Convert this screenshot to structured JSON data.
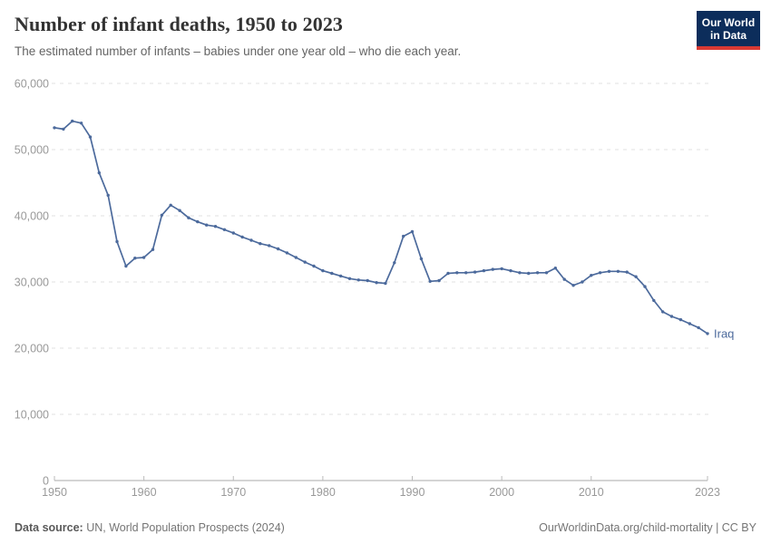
{
  "header": {
    "title": "Number of infant deaths, 1950 to 2023",
    "subtitle": "The estimated number of infants – babies under one year old – who die each year."
  },
  "logo": {
    "line1": "Our World",
    "line2": "in Data"
  },
  "footer": {
    "source_label": "Data source:",
    "source_text": " UN, World Population Prospects (2024)",
    "citation": "OurWorldinData.org/child-mortality | CC BY"
  },
  "colors": {
    "line": "#4c6a9c",
    "end_label": "#4c6a9c",
    "grid": "#e2e2e2",
    "axis_line": "#a8a8a8",
    "tick": "#bbbbbb",
    "tick_label": "#999999",
    "logo_bg": "#0c2d5b",
    "logo_red": "#d93a34"
  },
  "chart_data": {
    "type": "line",
    "title": "Number of infant deaths, 1950 to 2023",
    "xlabel": "",
    "ylabel": "",
    "xlim": [
      1950,
      2023
    ],
    "ylim": [
      0,
      60000
    ],
    "grid": "horizontal-dashed",
    "legend_position": "line-end-label",
    "end_label": "Iraq",
    "x_ticks": [
      1950,
      1960,
      1970,
      1980,
      1990,
      2000,
      2010,
      2023
    ],
    "x_tick_labels": [
      "1950",
      "1960",
      "1970",
      "1980",
      "1990",
      "2000",
      "2010",
      "2023"
    ],
    "y_ticks": [
      0,
      10000,
      20000,
      30000,
      40000,
      50000,
      60000
    ],
    "y_tick_labels": [
      "0",
      "10,000",
      "20,000",
      "30,000",
      "40,000",
      "50,000",
      "60,000"
    ],
    "x": [
      1950,
      1951,
      1952,
      1953,
      1954,
      1955,
      1956,
      1957,
      1958,
      1959,
      1960,
      1961,
      1962,
      1963,
      1964,
      1965,
      1966,
      1967,
      1968,
      1969,
      1970,
      1971,
      1972,
      1973,
      1974,
      1975,
      1976,
      1977,
      1978,
      1979,
      1980,
      1981,
      1982,
      1983,
      1984,
      1985,
      1986,
      1987,
      1988,
      1989,
      1990,
      1991,
      1992,
      1993,
      1994,
      1995,
      1996,
      1997,
      1998,
      1999,
      2000,
      2001,
      2002,
      2003,
      2004,
      2005,
      2006,
      2007,
      2008,
      2009,
      2010,
      2011,
      2012,
      2013,
      2014,
      2015,
      2016,
      2017,
      2018,
      2019,
      2020,
      2021,
      2022,
      2023
    ],
    "series": [
      {
        "name": "Iraq",
        "values": [
          53300,
          53100,
          54300,
          54000,
          51900,
          46500,
          43100,
          36100,
          32400,
          33600,
          33700,
          34900,
          40100,
          41600,
          40800,
          39700,
          39100,
          38600,
          38400,
          37900,
          37400,
          36800,
          36300,
          35800,
          35500,
          35000,
          34400,
          33700,
          33000,
          32400,
          31700,
          31300,
          30900,
          30500,
          30300,
          30200,
          29900,
          29800,
          32900,
          36900,
          37600,
          33500,
          30100,
          30200,
          31300,
          31400,
          31400,
          31500,
          31700,
          31900,
          32000,
          31700,
          31400,
          31300,
          31400,
          31400,
          32100,
          30400,
          29500,
          30000,
          31000,
          31400,
          31600,
          31600,
          31500,
          30800,
          29300,
          27200,
          25500,
          24800,
          24300,
          23700,
          23100,
          22200
        ]
      }
    ]
  }
}
